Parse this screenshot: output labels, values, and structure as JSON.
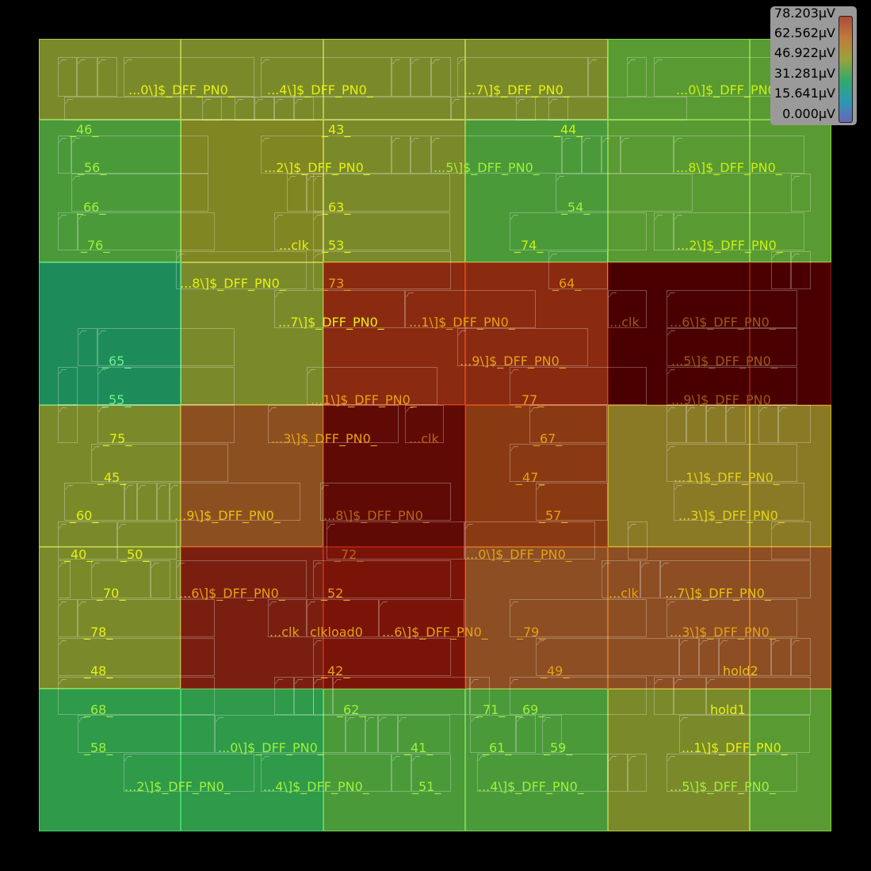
{
  "legend": {
    "values": [
      "78.203µV",
      "62.562µV",
      "46.922µV",
      "31.281µV",
      "15.641µV",
      "0.000µV"
    ]
  },
  "heatmap": {
    "rows": 6,
    "cols": 6,
    "colors": [
      [
        "#7a8a2a",
        "#7a8a2a",
        "#7a8a2a",
        "#7a8a2a",
        "#5a9a32",
        "#5a9a32"
      ],
      [
        "#4a9a3a",
        "#808622",
        "#7a8a2a",
        "#4a9a3a",
        "#5a9a32",
        "#5a9a32"
      ],
      [
        "#1e8c5a",
        "#7a8a2a",
        "#8a2a10",
        "#8a2a10",
        "#4a0000",
        "#4a0000"
      ],
      [
        "#7a8a2a",
        "#8c5020",
        "#600a05",
        "#8a3a12",
        "#8a7a26",
        "#8a7a26"
      ],
      [
        "#7a8a2a",
        "#7a1f10",
        "#7a1408",
        "#8c4e22",
        "#8c4e22",
        "#8c4e22"
      ],
      [
        "#2e9a4a",
        "#2e9a4a",
        "#4a9a3a",
        "#4a9a3a",
        "#7a8a2a",
        "#5a9a32"
      ]
    ],
    "grid_colors": [
      [
        "#b4c84a",
        "#b4c84a",
        "#b4c84a",
        "#b4c84a",
        "#8ad04a",
        "#8ad04a"
      ],
      [
        "#7ad05a",
        "#c0c84a",
        "#b4c84a",
        "#7ad05a",
        "#8ad04a",
        "#8ad04a"
      ],
      [
        "#3ad08a",
        "#b4c84a",
        "#d0461a",
        "#d0461a",
        "#8a1a10",
        "#8a1a10"
      ],
      [
        "#b4c84a",
        "#c87a2a",
        "#a01a0a",
        "#c8561a",
        "#c8b42a",
        "#c8b42a"
      ],
      [
        "#b4c84a",
        "#c0361a",
        "#b0240a",
        "#c8782a",
        "#c8782a",
        "#c8782a"
      ],
      [
        "#4ad06a",
        "#4ad06a",
        "#7ad05a",
        "#7ad05a",
        "#b4c84a",
        "#8ad04a"
      ]
    ]
  },
  "labels": [
    {
      "text": "...0\\]$_DFF_PN0_",
      "color": "#e6f014"
    },
    {
      "text": "...4\\]$_DFF_PN0_",
      "color": "#e6f014"
    },
    {
      "text": "...7\\]$_DFF_PN0_",
      "color": "#e6f014"
    },
    {
      "text": "...0\\]$_DFF_PN0_",
      "color": "#c8f014"
    },
    {
      "text": "_46_",
      "color": "#a0f03c"
    },
    {
      "text": "_43_",
      "color": "#e6f014"
    },
    {
      "text": "_44_",
      "color": "#c8f014"
    },
    {
      "text": "_56_",
      "color": "#a0f03c"
    },
    {
      "text": "...2\\]$_DFF_PN0_",
      "color": "#e6f014"
    },
    {
      "text": "...5\\]$_DFF_PN0_",
      "color": "#a0f03c"
    },
    {
      "text": "...8\\]$_DFF_PN0_",
      "color": "#c8f014"
    },
    {
      "text": "_66_",
      "color": "#a0f03c"
    },
    {
      "text": "_63_",
      "color": "#e6f014"
    },
    {
      "text": "_54_",
      "color": "#a0f03c"
    },
    {
      "text": "_76_",
      "color": "#a0f03c"
    },
    {
      "text": "...clk",
      "color": "#e6f014"
    },
    {
      "text": "_53_",
      "color": "#e6f014"
    },
    {
      "text": "_74_",
      "color": "#c8f014"
    },
    {
      "text": "...2\\]$_DFF_PN0_",
      "color": "#c8f014"
    },
    {
      "text": "...8\\]$_DFF_PN0_",
      "color": "#e6f014"
    },
    {
      "text": "_73_",
      "color": "#e6a014"
    },
    {
      "text": "_64_",
      "color": "#e6a014"
    },
    {
      "text": "...7\\]$_DFF_PN0_",
      "color": "#e6f014"
    },
    {
      "text": "...1\\]$_DFF_PN0_",
      "color": "#e6a014"
    },
    {
      "text": "...clk",
      "color": "#9a5a1a"
    },
    {
      "text": "...6\\]$_DFF_PN0_",
      "color": "#9a5a1a"
    },
    {
      "text": "_65_",
      "color": "#6af08a"
    },
    {
      "text": "...9\\]$_DFF_PN0_",
      "color": "#e6a014"
    },
    {
      "text": "...5\\]$_DFF_PN0_",
      "color": "#9a5a1a"
    },
    {
      "text": "_55_",
      "color": "#6af08a"
    },
    {
      "text": "...1\\]$_DFF_PN0_",
      "color": "#e6a014"
    },
    {
      "text": "_77_",
      "color": "#e6a014"
    },
    {
      "text": "...9\\]$_DFF_PN0_",
      "color": "#9a5a1a"
    },
    {
      "text": "_75_",
      "color": "#e6f014"
    },
    {
      "text": "...3\\]$_DFF_PN0_",
      "color": "#e6a014"
    },
    {
      "text": "...clk",
      "color": "#b4641a"
    },
    {
      "text": "_67_",
      "color": "#e6a014"
    },
    {
      "text": "_45_",
      "color": "#e6f014"
    },
    {
      "text": "_47_",
      "color": "#e6a014"
    },
    {
      "text": "...1\\]$_DFF_PN0_",
      "color": "#e6d014"
    },
    {
      "text": "_60_",
      "color": "#e6f014"
    },
    {
      "text": "...9\\]$_DFF_PN0_",
      "color": "#e6c014"
    },
    {
      "text": "...8\\]$_DFF_PN0_",
      "color": "#b4641a"
    },
    {
      "text": "_57_",
      "color": "#e6a014"
    },
    {
      "text": "...3\\]$_DFF_PN0_",
      "color": "#e6d014"
    },
    {
      "text": "_40_",
      "color": "#e6f014"
    },
    {
      "text": "_50_",
      "color": "#e6f014"
    },
    {
      "text": "_72_",
      "color": "#b4641a"
    },
    {
      "text": "...0\\]$_DFF_PN0_",
      "color": "#e6a014"
    },
    {
      "text": "_70_",
      "color": "#e6f014"
    },
    {
      "text": "...6\\]$_DFF_PN0_",
      "color": "#e6a014"
    },
    {
      "text": "_52_",
      "color": "#e6a014"
    },
    {
      "text": "...clk",
      "color": "#e6a014"
    },
    {
      "text": "...7\\]$_DFF_PN0_",
      "color": "#e6c014"
    },
    {
      "text": "_78_",
      "color": "#e6f014"
    },
    {
      "text": "...clk",
      "color": "#e6a014"
    },
    {
      "text": "clkload0",
      "color": "#e6a014"
    },
    {
      "text": "...6\\]$_DFF_PN0_",
      "color": "#e6a014"
    },
    {
      "text": "_79_",
      "color": "#e6a014"
    },
    {
      "text": "...3\\]$_DFF_PN0_",
      "color": "#e6a014"
    },
    {
      "text": "_48_",
      "color": "#e6f014"
    },
    {
      "text": "_42_",
      "color": "#e6a014"
    },
    {
      "text": "_49_",
      "color": "#e6a014"
    },
    {
      "text": "hold2",
      "color": "#e6c014"
    },
    {
      "text": "_68_",
      "color": "#a0f03c"
    },
    {
      "text": "_62_",
      "color": "#a0f03c"
    },
    {
      "text": "_71_",
      "color": "#a0f03c"
    },
    {
      "text": "_69_",
      "color": "#a0f03c"
    },
    {
      "text": "hold1",
      "color": "#e6f014"
    },
    {
      "text": "_58_",
      "color": "#a0f03c"
    },
    {
      "text": "...0\\]$_DFF_PN0_",
      "color": "#a0f03c"
    },
    {
      "text": "_41_",
      "color": "#a0f03c"
    },
    {
      "text": "_61_",
      "color": "#a0f03c"
    },
    {
      "text": "_59_",
      "color": "#a0f03c"
    },
    {
      "text": "...1\\]$_DFF_PN0_",
      "color": "#e6f014"
    },
    {
      "text": "...2\\]$_DFF_PN0_",
      "color": "#a0f03c"
    },
    {
      "text": "...4\\]$_DFF_PN0_",
      "color": "#a0f03c"
    },
    {
      "text": "_51_",
      "color": "#a0f03c"
    },
    {
      "text": "...4\\]$_DFF_PN0_",
      "color": "#a0f03c"
    },
    {
      "text": "...5\\]$_DFF_PN0_",
      "color": "#a0f03c"
    }
  ]
}
